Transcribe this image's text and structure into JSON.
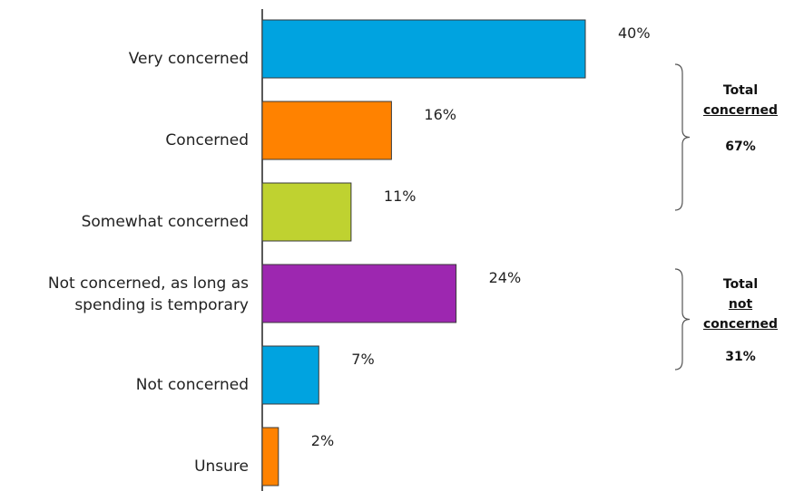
{
  "chart_data": {
    "type": "bar",
    "orientation": "horizontal",
    "categories": [
      [
        "Very concerned"
      ],
      [
        "Concerned"
      ],
      [
        "Somewhat concerned"
      ],
      [
        "Not concerned, as long as",
        "spending is temporary"
      ],
      [
        "Not concerned"
      ],
      [
        "Unsure"
      ]
    ],
    "values": [
      40,
      16,
      11,
      24,
      7,
      2
    ],
    "value_labels": [
      "40%",
      "16%",
      "11%",
      "24%",
      "7%",
      "2%"
    ],
    "colors": [
      "#00a3e0",
      "#ff8200",
      "#bfd230",
      "#9d27b0",
      "#00a3e0",
      "#ff8200"
    ],
    "xlim": [
      0,
      40
    ],
    "grid": false,
    "legend": "none",
    "groups": [
      {
        "line1": "Total",
        "line2_plain": "",
        "line2_underlined": "concerned",
        "line3_underlined": "",
        "total": "67%",
        "spans_categories": [
          0,
          2
        ]
      },
      {
        "line1": "Total",
        "line2_plain": "",
        "line2_underlined": "not",
        "line3_underlined": "concerned",
        "total": "31%",
        "spans_categories": [
          3,
          5
        ]
      }
    ]
  }
}
